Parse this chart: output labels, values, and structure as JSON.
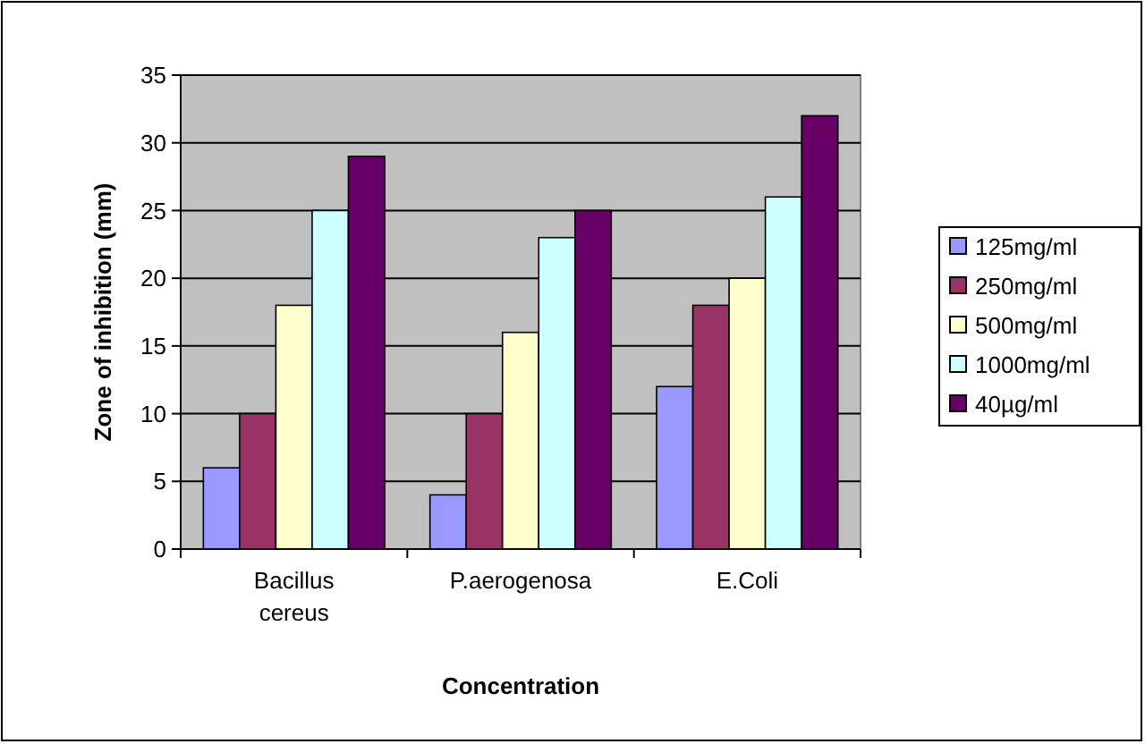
{
  "chart_data": {
    "type": "bar",
    "xlabel": "Concentration",
    "ylabel": "Zone of inhibition (mm)",
    "categories": [
      "Bacillus cereus",
      "P.aerogenosa",
      "E.Coli"
    ],
    "series": [
      {
        "name": "125mg/ml",
        "color": "#9999ff",
        "values": [
          6,
          4,
          12
        ]
      },
      {
        "name": "250mg/ml",
        "color": "#993366",
        "values": [
          10,
          10,
          18
        ]
      },
      {
        "name": "500mg/ml",
        "color": "#ffffcc",
        "values": [
          18,
          16,
          20
        ]
      },
      {
        "name": "1000mg/ml",
        "color": "#ccffff",
        "values": [
          25,
          23,
          26
        ]
      },
      {
        "name": "40µg/ml",
        "color": "#660066",
        "values": [
          29,
          25,
          32
        ]
      }
    ],
    "ylim": [
      0,
      35
    ],
    "yticks": [
      0,
      5,
      10,
      15,
      20,
      25,
      30,
      35
    ],
    "grid": "y",
    "legend": "right"
  }
}
